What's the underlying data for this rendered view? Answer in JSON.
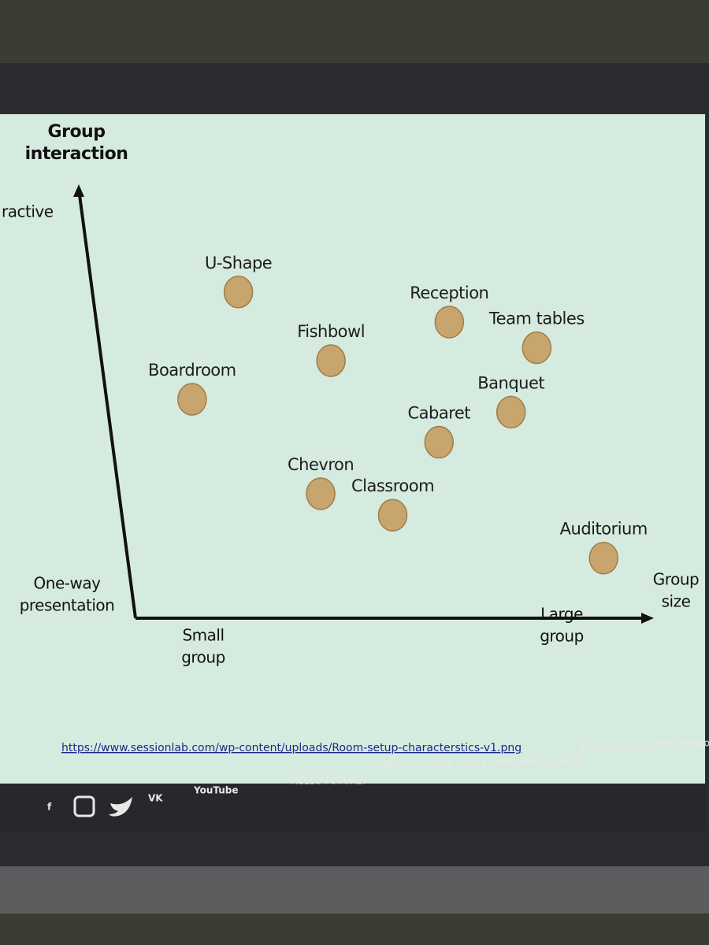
{
  "chart_data": {
    "type": "scatter",
    "y_label": [
      "Group",
      "interaction"
    ],
    "x_label": [
      "Group",
      "size"
    ],
    "x_low_label": [
      "Small",
      "group"
    ],
    "x_high_label": [
      "Large",
      "group"
    ],
    "y_low_label": [
      "One-way",
      "presentation"
    ],
    "y_high_label": [
      "ractive"
    ],
    "labels": [
      "U-Shape",
      "Fishbowl",
      "Reception",
      "Team tables",
      "Boardroom",
      "Banquet",
      "Cabaret",
      "Chevron",
      "Classroom",
      "Auditorium"
    ],
    "x": [
      2.0,
      3.8,
      6.1,
      7.8,
      1.1,
      7.3,
      5.9,
      3.6,
      5.0,
      9.1
    ],
    "values": [
      7.6,
      6.0,
      6.9,
      6.3,
      5.1,
      4.8,
      4.1,
      2.9,
      2.4,
      1.4
    ],
    "color": "#c8a56c",
    "xlim": [
      0,
      10
    ],
    "ylim": [
      0,
      10
    ],
    "source": "https://www.sessionlab.com/wp-content/uploads/Room-setup-characterstics-v1.png"
  },
  "footer": {
    "youtube": "YouTube",
    "slogan": "HELLO FUTURE!",
    "group": "GRUPA UCZELNI VISTULA",
    "sites": [
      "www.vistula.edu.pl",
      "www.sgtir.edu.pl",
      "www.handlow"
    ]
  }
}
